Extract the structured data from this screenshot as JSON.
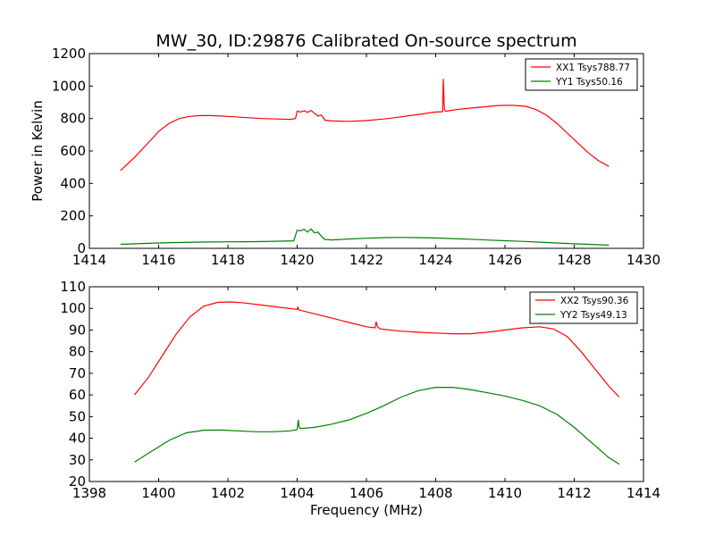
{
  "figure": {
    "title": "MW_30, ID:29876 Calibrated On-source spectrum",
    "background": "#ffffff"
  },
  "chart_data": [
    {
      "type": "line",
      "panel": "top",
      "title": "MW_30, ID:29876 Calibrated On-source spectrum",
      "xlabel": "",
      "ylabel": "Power in Kelvin",
      "xlim": [
        1414,
        1430
      ],
      "ylim": [
        0,
        1200
      ],
      "xticks": [
        1414,
        1416,
        1418,
        1420,
        1422,
        1424,
        1426,
        1428,
        1430
      ],
      "yticks": [
        0,
        200,
        400,
        600,
        800,
        1000,
        1200
      ],
      "grid": false,
      "legend_position": "top-right",
      "series": [
        {
          "name": "XX1 Tsys788.77",
          "color": "#ff0000",
          "x": [
            1414.9,
            1415.3,
            1415.7,
            1416.0,
            1416.3,
            1416.6,
            1416.9,
            1417.2,
            1417.5,
            1417.8,
            1418.2,
            1418.6,
            1419.0,
            1419.4,
            1419.8,
            1419.95,
            1420.0,
            1420.1,
            1420.2,
            1420.3,
            1420.4,
            1420.5,
            1420.6,
            1420.7,
            1420.8,
            1421.0,
            1421.5,
            1422.0,
            1422.5,
            1423.0,
            1423.5,
            1424.0,
            1424.2,
            1424.22,
            1424.25,
            1424.28,
            1424.35,
            1424.6,
            1425.0,
            1425.4,
            1425.8,
            1426.2,
            1426.6,
            1426.9,
            1427.2,
            1427.5,
            1427.8,
            1428.1,
            1428.4,
            1428.7,
            1429.0
          ],
          "y": [
            480,
            560,
            650,
            720,
            770,
            800,
            813,
            818,
            818,
            815,
            810,
            805,
            800,
            797,
            795,
            800,
            845,
            840,
            848,
            838,
            850,
            832,
            815,
            822,
            790,
            785,
            783,
            787,
            797,
            810,
            825,
            840,
            842,
            1045,
            860,
            845,
            847,
            855,
            864,
            872,
            880,
            882,
            875,
            855,
            820,
            770,
            710,
            650,
            590,
            540,
            505
          ]
        },
        {
          "name": "YY1 Tsys50.16",
          "color": "#008000",
          "x": [
            1414.9,
            1415.5,
            1416.0,
            1416.5,
            1417.0,
            1417.5,
            1418.0,
            1418.5,
            1419.0,
            1419.5,
            1419.9,
            1420.0,
            1420.1,
            1420.2,
            1420.3,
            1420.4,
            1420.5,
            1420.6,
            1420.7,
            1420.8,
            1421.0,
            1421.5,
            1422.0,
            1422.5,
            1423.0,
            1423.5,
            1424.0,
            1424.5,
            1425.0,
            1425.5,
            1426.0,
            1426.5,
            1427.0,
            1427.5,
            1428.0,
            1428.5,
            1429.0
          ],
          "y": [
            25,
            30,
            33,
            36,
            38,
            39,
            40,
            41,
            42,
            44,
            46,
            112,
            108,
            118,
            100,
            120,
            95,
            100,
            75,
            55,
            52,
            58,
            62,
            66,
            67,
            66,
            64,
            60,
            56,
            51,
            47,
            43,
            38,
            33,
            28,
            24,
            20
          ]
        }
      ]
    },
    {
      "type": "line",
      "panel": "bottom",
      "title": "",
      "xlabel": "Frequency (MHz)",
      "ylabel": "",
      "xlim": [
        1398,
        1414
      ],
      "ylim": [
        20,
        110
      ],
      "xticks": [
        1398,
        1400,
        1402,
        1404,
        1406,
        1408,
        1410,
        1412,
        1414
      ],
      "yticks": [
        20,
        30,
        40,
        50,
        60,
        70,
        80,
        90,
        100,
        110
      ],
      "grid": false,
      "legend_position": "top-right",
      "series": [
        {
          "name": "XX2 Tsys90.36",
          "color": "#ff0000",
          "x": [
            1399.3,
            1399.7,
            1400.1,
            1400.5,
            1400.9,
            1401.3,
            1401.7,
            1402.1,
            1402.5,
            1403.0,
            1403.5,
            1404.0,
            1404.02,
            1404.05,
            1404.5,
            1405.0,
            1405.5,
            1406.0,
            1406.25,
            1406.28,
            1406.32,
            1406.4,
            1407.0,
            1407.5,
            1408.0,
            1408.5,
            1409.0,
            1409.5,
            1410.0,
            1410.5,
            1411.0,
            1411.4,
            1411.8,
            1412.2,
            1412.6,
            1413.0,
            1413.3
          ],
          "y": [
            60,
            68,
            78,
            88,
            96,
            101,
            102.8,
            103,
            102.5,
            101.5,
            100.5,
            99.5,
            100.5,
            99.3,
            97.5,
            95.5,
            93.5,
            91.5,
            91,
            93.8,
            91.5,
            90.5,
            89.5,
            89,
            88.6,
            88.3,
            88.3,
            89,
            90,
            91,
            91.5,
            90.5,
            87,
            80,
            72,
            64,
            59
          ]
        },
        {
          "name": "YY2 Tsys49.13",
          "color": "#008000",
          "x": [
            1399.3,
            1399.8,
            1400.3,
            1400.8,
            1401.3,
            1401.8,
            1402.3,
            1402.8,
            1403.3,
            1403.8,
            1404.0,
            1404.03,
            1404.06,
            1404.1,
            1404.5,
            1405.0,
            1405.5,
            1406.0,
            1406.5,
            1407.0,
            1407.5,
            1408.0,
            1408.5,
            1409.0,
            1409.5,
            1410.0,
            1410.5,
            1411.0,
            1411.5,
            1412.0,
            1412.5,
            1413.0,
            1413.3
          ],
          "y": [
            29,
            34,
            39,
            42.5,
            43.7,
            43.8,
            43.4,
            43,
            43,
            43.4,
            44,
            48.5,
            45,
            44.5,
            45,
            46.5,
            48.5,
            51.5,
            55,
            59,
            62,
            63.5,
            63.5,
            62.5,
            61,
            59.5,
            57.5,
            55,
            51,
            45,
            38,
            31,
            28
          ]
        }
      ]
    }
  ]
}
